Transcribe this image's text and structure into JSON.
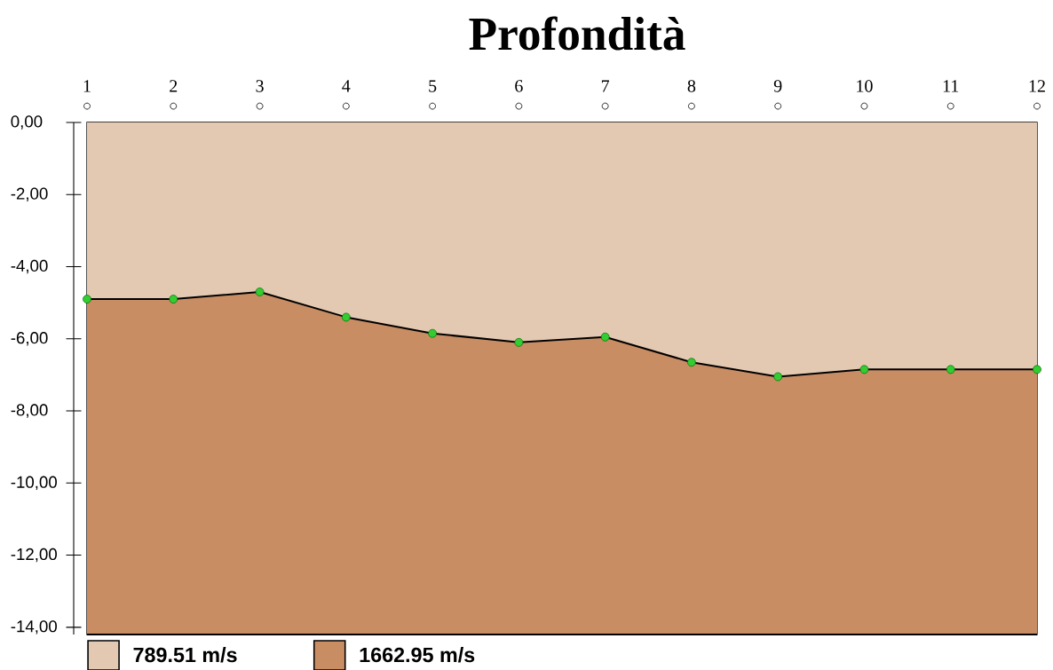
{
  "chart_data": {
    "type": "area",
    "title": "Profondità",
    "stacked": true,
    "legend": "bottom left",
    "x": [
      1,
      2,
      3,
      4,
      5,
      6,
      7,
      8,
      9,
      10,
      11,
      12
    ],
    "series": [
      {
        "name": "789.51 m/s",
        "color": "#e3c9b2",
        "marker": "circle",
        "colors": [
          "#33cc33",
          "#33cc33",
          "#33cc33",
          "#33cc33",
          "#33cc33",
          "#33cc33",
          "#33cc33",
          "#33cc33",
          "#33cc33",
          "#33cc33",
          "#33cc33",
          "#33cc33"
        ],
        "values": [
          -4.9,
          -4.9,
          -4.7,
          -5.4,
          -5.85,
          -6.1,
          -5.95,
          -6.65,
          -7.05,
          -6.85,
          -6.85,
          -6.85
        ]
      },
      {
        "name": "1662.95 m/s",
        "color": "#c98d64",
        "values": [
          -9.3,
          -9.3,
          -9.5,
          -8.8,
          -8.35,
          -8.1,
          -8.25,
          -7.55,
          -7.15,
          -7.35,
          -7.35,
          -7.35
        ]
      }
    ],
    "xlim": [
      1,
      12
    ],
    "xticks": [
      1,
      2,
      3,
      4,
      5,
      6,
      7,
      8,
      9,
      10,
      11,
      12
    ],
    "ylim": [
      -14.2,
      0
    ],
    "yticks": [
      {
        "value": 0,
        "label": "0,00"
      },
      {
        "value": -2,
        "label": "-2,00"
      },
      {
        "value": -4,
        "label": "-4,00"
      },
      {
        "value": -6,
        "label": "-6,00"
      },
      {
        "value": -8,
        "label": "-8,00"
      },
      {
        "value": -10,
        "label": "-10,00"
      },
      {
        "value": -12,
        "label": "-12,00"
      },
      {
        "value": -14,
        "label": "-14,00"
      }
    ]
  }
}
